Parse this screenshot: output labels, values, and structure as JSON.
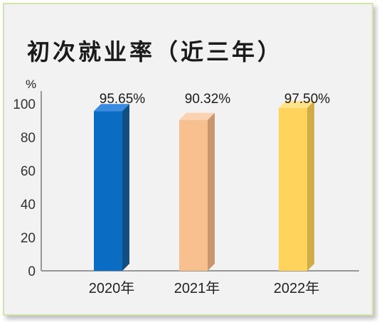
{
  "chart_data": {
    "type": "bar",
    "title": "初次就业率（近三年）",
    "ylabel": "%",
    "ylim": [
      0,
      100
    ],
    "yticks": [
      0,
      20,
      40,
      60,
      80,
      100
    ],
    "categories": [
      "2020年",
      "2021年",
      "2022年"
    ],
    "values": [
      95.65,
      90.32,
      97.5
    ],
    "value_labels": [
      "95.65%",
      "90.32%",
      "97.50%"
    ],
    "grid": false,
    "legend": "none",
    "colors": {
      "front": [
        "#0a6cc2",
        "#f8bf8f",
        "#ffd35c"
      ],
      "side": [
        "#114e82",
        "#c99670",
        "#cfac45"
      ],
      "top": [
        "#3a8be0",
        "#fbd3b0",
        "#ffe28a"
      ]
    }
  }
}
